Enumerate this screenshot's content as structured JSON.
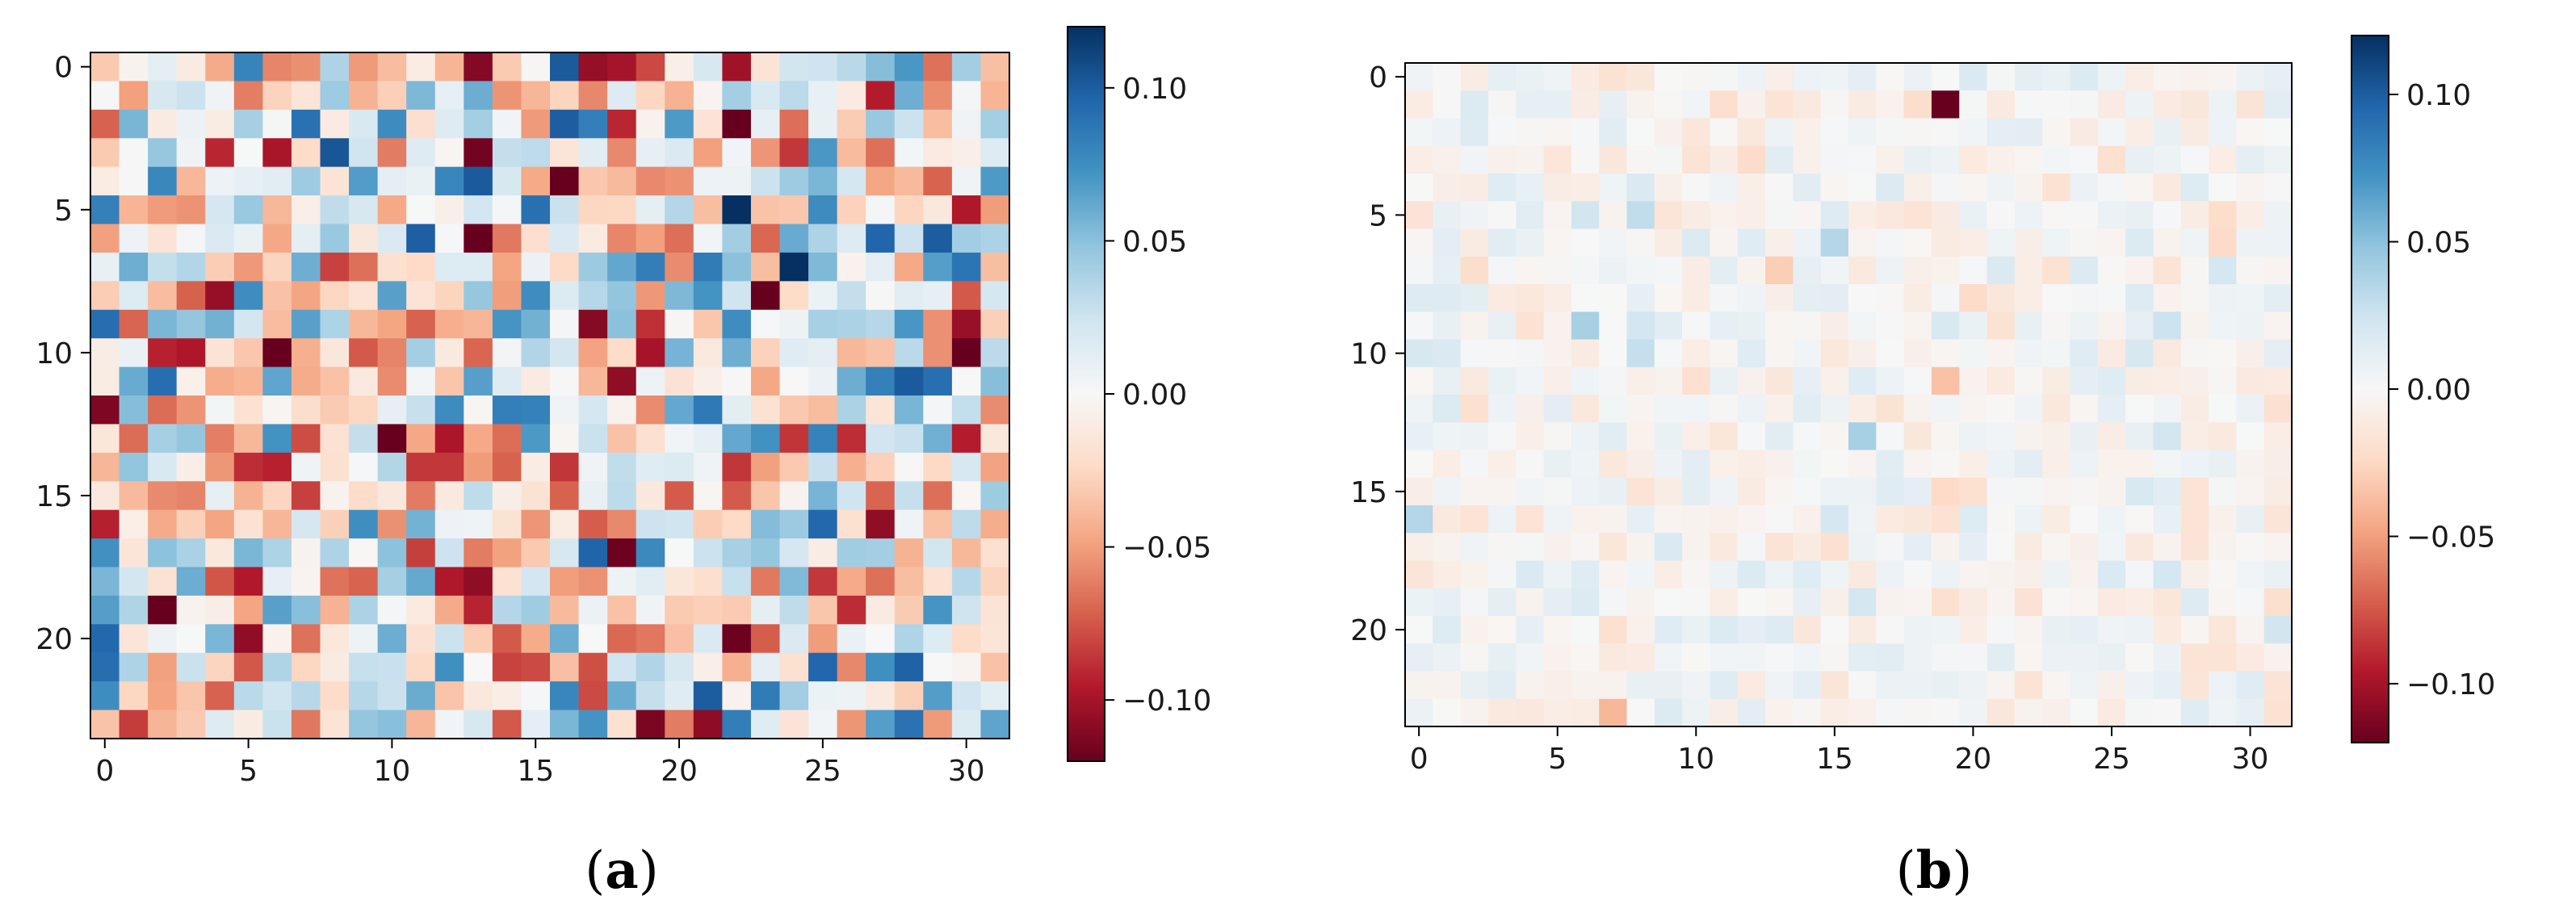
{
  "chart_data": [
    {
      "type": "heatmap",
      "panel_label": "(a)",
      "panel_letter": "a",
      "rows": 24,
      "cols": 32,
      "clim": [
        -0.12,
        0.12
      ],
      "colormap": "RdBu",
      "x_ticks": [
        0,
        5,
        10,
        15,
        20,
        25,
        30
      ],
      "y_ticks": [
        0,
        5,
        10,
        15,
        20
      ],
      "colorbar_ticks": [
        {
          "value": 0.1,
          "label": "0.10"
        },
        {
          "value": 0.05,
          "label": "0.05"
        },
        {
          "value": 0.0,
          "label": "0.00"
        },
        {
          "value": -0.05,
          "label": "−0.05"
        },
        {
          "value": -0.1,
          "label": "−0.10"
        }
      ],
      "value_spread": 0.095,
      "seed": 1337,
      "notable_cells": []
    },
    {
      "type": "heatmap",
      "panel_label": "(b)",
      "panel_letter": "b",
      "rows": 24,
      "cols": 32,
      "clim": [
        -0.12,
        0.12
      ],
      "colormap": "RdBu",
      "x_ticks": [
        0,
        5,
        10,
        15,
        20,
        25,
        30
      ],
      "y_ticks": [
        0,
        5,
        10,
        15,
        20
      ],
      "colorbar_ticks": [
        {
          "value": 0.1,
          "label": "0.10"
        },
        {
          "value": 0.05,
          "label": "0.05"
        },
        {
          "value": 0.0,
          "label": "0.00"
        },
        {
          "value": -0.05,
          "label": "−0.05"
        },
        {
          "value": -0.1,
          "label": "−0.10"
        }
      ],
      "value_spread": 0.018,
      "seed": 4242,
      "notable_cells": [
        {
          "row": 1,
          "col": 19,
          "value": -0.12
        },
        {
          "row": 13,
          "col": 16,
          "value": 0.04
        },
        {
          "row": 9,
          "col": 6,
          "value": 0.04
        },
        {
          "row": 6,
          "col": 15,
          "value": 0.035
        },
        {
          "row": 5,
          "col": 8,
          "value": 0.03
        },
        {
          "row": 11,
          "col": 19,
          "value": -0.035
        },
        {
          "row": 23,
          "col": 7,
          "value": -0.04
        },
        {
          "row": 7,
          "col": 13,
          "value": -0.03
        },
        {
          "row": 16,
          "col": 0,
          "value": 0.035
        }
      ]
    }
  ]
}
